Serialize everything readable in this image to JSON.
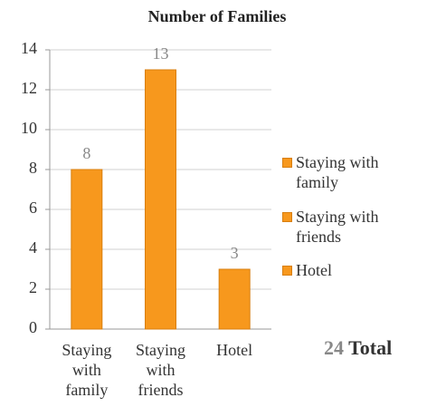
{
  "chart_data": {
    "type": "bar",
    "title": "Number of Families",
    "categories": [
      "Staying with family",
      "Staying with friends",
      "Hotel"
    ],
    "values": [
      8,
      13,
      3
    ],
    "color": "#f7981d",
    "ylim": [
      0,
      14
    ],
    "yticks": [
      0,
      2,
      4,
      6,
      8,
      10,
      12,
      14
    ],
    "grid": true,
    "legend": "right",
    "total": 24,
    "total_label": "Total"
  }
}
